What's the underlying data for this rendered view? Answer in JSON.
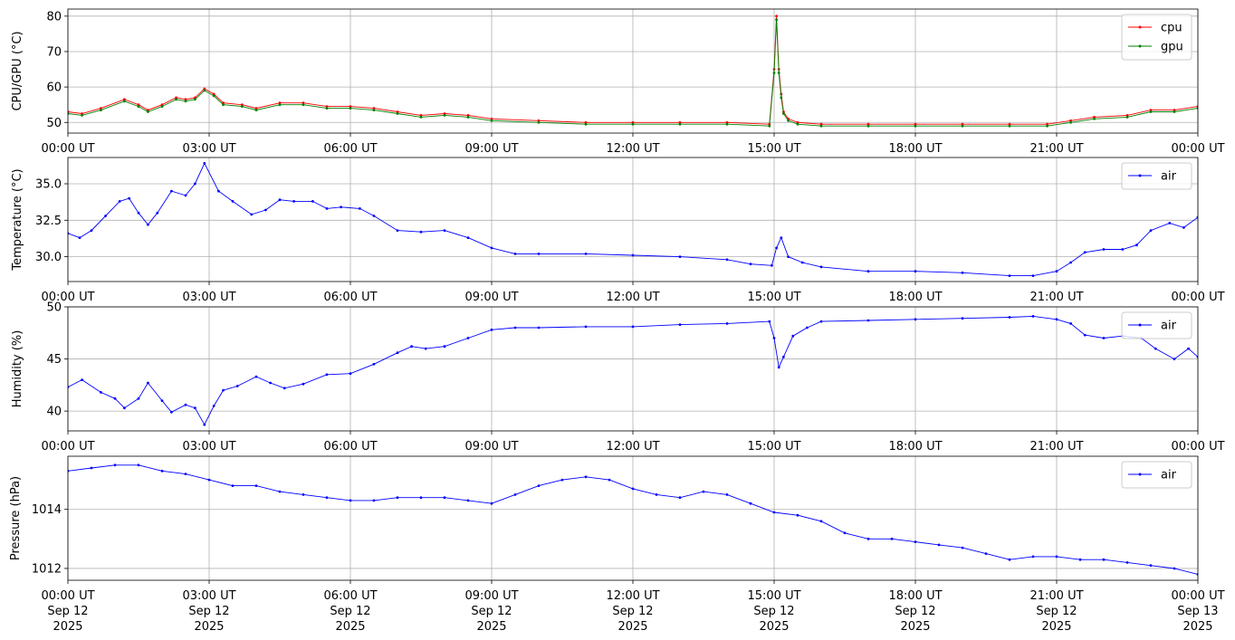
{
  "colors": {
    "cpu": "#ff0000",
    "gpu": "#008000",
    "air": "#0000ff",
    "grid": "#b0b0b0"
  },
  "chart_data": [
    {
      "type": "line",
      "ylabel": "CPU/GPU (°C)",
      "xlabel": "",
      "xlim": [
        0,
        24
      ],
      "ylim": [
        47,
        82
      ],
      "yticks": [
        50,
        60,
        70,
        80
      ],
      "ytick_labels": [
        "50",
        "60",
        "70",
        "80"
      ],
      "xtick_labels": [
        "00:00 UT",
        "03:00 UT",
        "06:00 UT",
        "09:00 UT",
        "12:00 UT",
        "15:00 UT",
        "18:00 UT",
        "21:00 UT",
        "00:00 UT"
      ],
      "grid": true,
      "legend": "top-right",
      "series": [
        {
          "name": "cpu",
          "color": "#ff0000",
          "x": [
            0,
            0.3,
            0.7,
            1.2,
            1.5,
            1.7,
            2.0,
            2.3,
            2.5,
            2.7,
            2.9,
            3.1,
            3.3,
            3.7,
            4.0,
            4.5,
            5.0,
            5.5,
            6.0,
            6.5,
            7.0,
            7.5,
            8.0,
            8.5,
            9.0,
            10,
            11,
            12,
            13,
            14,
            14.9,
            15.0,
            15.05,
            15.1,
            15.15,
            15.2,
            15.3,
            15.5,
            16,
            17,
            18,
            19,
            20,
            20.8,
            21.3,
            21.8,
            22.5,
            23.0,
            23.5,
            24
          ],
          "values": [
            53,
            52.5,
            54,
            56.5,
            55,
            53.5,
            55,
            57,
            56.5,
            57,
            59.5,
            58,
            55.5,
            55,
            54,
            55.5,
            55.5,
            54.5,
            54.5,
            54,
            53,
            52,
            52.5,
            52,
            51,
            50.5,
            50,
            50,
            50,
            50,
            49.5,
            65,
            80,
            65,
            58,
            53,
            51,
            50,
            49.5,
            49.5,
            49.5,
            49.5,
            49.5,
            49.5,
            50.5,
            51.5,
            52,
            53.5,
            53.5,
            54.5
          ]
        },
        {
          "name": "gpu",
          "color": "#008000",
          "x": [
            0,
            0.3,
            0.7,
            1.2,
            1.5,
            1.7,
            2.0,
            2.3,
            2.5,
            2.7,
            2.9,
            3.1,
            3.3,
            3.7,
            4.0,
            4.5,
            5.0,
            5.5,
            6.0,
            6.5,
            7.0,
            7.5,
            8.0,
            8.5,
            9.0,
            10,
            11,
            12,
            13,
            14,
            14.9,
            15.0,
            15.05,
            15.1,
            15.15,
            15.2,
            15.3,
            15.5,
            16,
            17,
            18,
            19,
            20,
            20.8,
            21.3,
            21.8,
            22.5,
            23.0,
            23.5,
            24
          ],
          "values": [
            52.5,
            52,
            53.5,
            56,
            54.5,
            53,
            54.5,
            56.5,
            56,
            56.5,
            59,
            57.5,
            55,
            54.5,
            53.5,
            55,
            55,
            54,
            54,
            53.5,
            52.5,
            51.5,
            52,
            51.5,
            50.5,
            50,
            49.5,
            49.5,
            49.5,
            49.5,
            49,
            64,
            79,
            64,
            57,
            52.5,
            50.5,
            49.5,
            49,
            49,
            49,
            49,
            49,
            49,
            50,
            51,
            51.5,
            53,
            53,
            54
          ]
        }
      ]
    },
    {
      "type": "line",
      "ylabel": "Temperature (°C)",
      "xlabel": "",
      "xlim": [
        0,
        24
      ],
      "ylim": [
        28.3,
        36.8
      ],
      "yticks": [
        30.0,
        32.5,
        35.0
      ],
      "ytick_labels": [
        "30.0",
        "32.5",
        "35.0"
      ],
      "xtick_labels": [
        "00:00 UT",
        "03:00 UT",
        "06:00 UT",
        "09:00 UT",
        "12:00 UT",
        "15:00 UT",
        "18:00 UT",
        "21:00 UT",
        "00:00 UT"
      ],
      "grid": true,
      "legend": "top-right",
      "series": [
        {
          "name": "air",
          "color": "#0000ff",
          "x": [
            0,
            0.25,
            0.5,
            0.8,
            1.1,
            1.3,
            1.5,
            1.7,
            1.9,
            2.2,
            2.5,
            2.7,
            2.9,
            3.2,
            3.5,
            3.9,
            4.2,
            4.5,
            4.8,
            5.2,
            5.5,
            5.8,
            6.2,
            6.5,
            7.0,
            7.5,
            8.0,
            8.5,
            9.0,
            9.5,
            10,
            11,
            12,
            13,
            14,
            14.5,
            14.95,
            15.05,
            15.15,
            15.3,
            15.6,
            16,
            17,
            18,
            19,
            20,
            20.5,
            21.0,
            21.3,
            21.6,
            22.0,
            22.4,
            22.7,
            23.0,
            23.4,
            23.7,
            24
          ],
          "values": [
            31.6,
            31.3,
            31.8,
            32.8,
            33.8,
            34.0,
            33.0,
            32.2,
            33.0,
            34.5,
            34.2,
            35.0,
            36.4,
            34.5,
            33.8,
            32.9,
            33.2,
            33.9,
            33.8,
            33.8,
            33.3,
            33.4,
            33.3,
            32.8,
            31.8,
            31.7,
            31.8,
            31.3,
            30.6,
            30.2,
            30.2,
            30.2,
            30.1,
            30.0,
            29.8,
            29.5,
            29.4,
            30.6,
            31.3,
            30.0,
            29.6,
            29.3,
            29.0,
            29.0,
            28.9,
            28.7,
            28.7,
            29.0,
            29.6,
            30.3,
            30.5,
            30.5,
            30.8,
            31.8,
            32.3,
            32.0,
            32.7
          ]
        }
      ]
    },
    {
      "type": "line",
      "ylabel": "Humidity (%)",
      "xlabel": "",
      "xlim": [
        0,
        24
      ],
      "ylim": [
        38.1,
        50.0
      ],
      "yticks": [
        40,
        45,
        50
      ],
      "ytick_labels": [
        "40",
        "45",
        "50"
      ],
      "xtick_labels": [
        "00:00 UT",
        "03:00 UT",
        "06:00 UT",
        "09:00 UT",
        "12:00 UT",
        "15:00 UT",
        "18:00 UT",
        "21:00 UT",
        "00:00 UT"
      ],
      "grid": true,
      "legend": "top-right",
      "series": [
        {
          "name": "air",
          "color": "#0000ff",
          "x": [
            0,
            0.3,
            0.7,
            1.0,
            1.2,
            1.5,
            1.7,
            2.0,
            2.2,
            2.5,
            2.7,
            2.9,
            3.1,
            3.3,
            3.6,
            4.0,
            4.3,
            4.6,
            5.0,
            5.5,
            6.0,
            6.5,
            7.0,
            7.3,
            7.6,
            8.0,
            8.5,
            9.0,
            9.5,
            10,
            11,
            12,
            13,
            14,
            14.9,
            15.0,
            15.1,
            15.2,
            15.4,
            15.7,
            16,
            17,
            18,
            19,
            20,
            20.5,
            21.0,
            21.3,
            21.6,
            22.0,
            22.4,
            22.8,
            23.1,
            23.5,
            23.8,
            24
          ],
          "values": [
            42.3,
            43.0,
            41.8,
            41.2,
            40.3,
            41.2,
            42.7,
            41.0,
            39.9,
            40.6,
            40.3,
            38.7,
            40.5,
            42.0,
            42.4,
            43.3,
            42.7,
            42.2,
            42.6,
            43.5,
            43.6,
            44.5,
            45.6,
            46.2,
            46.0,
            46.2,
            47.0,
            47.8,
            48.0,
            48.0,
            48.1,
            48.1,
            48.3,
            48.4,
            48.6,
            47.0,
            44.2,
            45.2,
            47.2,
            48.0,
            48.6,
            48.7,
            48.8,
            48.9,
            49.0,
            49.1,
            48.8,
            48.4,
            47.3,
            47.0,
            47.2,
            47.0,
            46.0,
            45.0,
            46.0,
            45.2
          ]
        }
      ]
    },
    {
      "type": "line",
      "ylabel": "Pressure (hPa)",
      "xlabel": "",
      "xlim": [
        0,
        24
      ],
      "ylim": [
        1011.6,
        1015.8
      ],
      "yticks": [
        1012,
        1014
      ],
      "ytick_labels": [
        "1012",
        "1014"
      ],
      "xtick_labels": [
        [
          "00:00 UT",
          "Sep 12",
          "2025"
        ],
        [
          "03:00 UT",
          "Sep 12",
          "2025"
        ],
        [
          "06:00 UT",
          "Sep 12",
          "2025"
        ],
        [
          "09:00 UT",
          "Sep 12",
          "2025"
        ],
        [
          "12:00 UT",
          "Sep 12",
          "2025"
        ],
        [
          "15:00 UT",
          "Sep 12",
          "2025"
        ],
        [
          "18:00 UT",
          "Sep 12",
          "2025"
        ],
        [
          "21:00 UT",
          "Sep 12",
          "2025"
        ],
        [
          "00:00 UT",
          "Sep 13",
          "2025"
        ]
      ],
      "grid": true,
      "legend": "top-right",
      "series": [
        {
          "name": "air",
          "color": "#0000ff",
          "x": [
            0,
            0.5,
            1.0,
            1.5,
            2.0,
            2.5,
            3.0,
            3.5,
            4.0,
            4.5,
            5.0,
            5.5,
            6.0,
            6.5,
            7.0,
            7.5,
            8.0,
            8.5,
            9.0,
            9.5,
            10,
            10.5,
            11,
            11.5,
            12,
            12.5,
            13,
            13.5,
            14,
            14.5,
            15.0,
            15.5,
            16,
            16.5,
            17,
            17.5,
            18,
            18.5,
            19,
            19.5,
            20,
            20.5,
            21,
            21.5,
            22,
            22.5,
            23,
            23.5,
            24
          ],
          "values": [
            1015.3,
            1015.4,
            1015.5,
            1015.5,
            1015.3,
            1015.2,
            1015.0,
            1014.8,
            1014.8,
            1014.6,
            1014.5,
            1014.4,
            1014.3,
            1014.3,
            1014.4,
            1014.4,
            1014.4,
            1014.3,
            1014.2,
            1014.5,
            1014.8,
            1015.0,
            1015.1,
            1015.0,
            1014.7,
            1014.5,
            1014.4,
            1014.6,
            1014.5,
            1014.2,
            1013.9,
            1013.8,
            1013.6,
            1013.2,
            1013.0,
            1013.0,
            1012.9,
            1012.8,
            1012.7,
            1012.5,
            1012.3,
            1012.4,
            1012.4,
            1012.3,
            1012.3,
            1012.2,
            1012.1,
            1012.0,
            1011.8
          ]
        }
      ]
    }
  ]
}
